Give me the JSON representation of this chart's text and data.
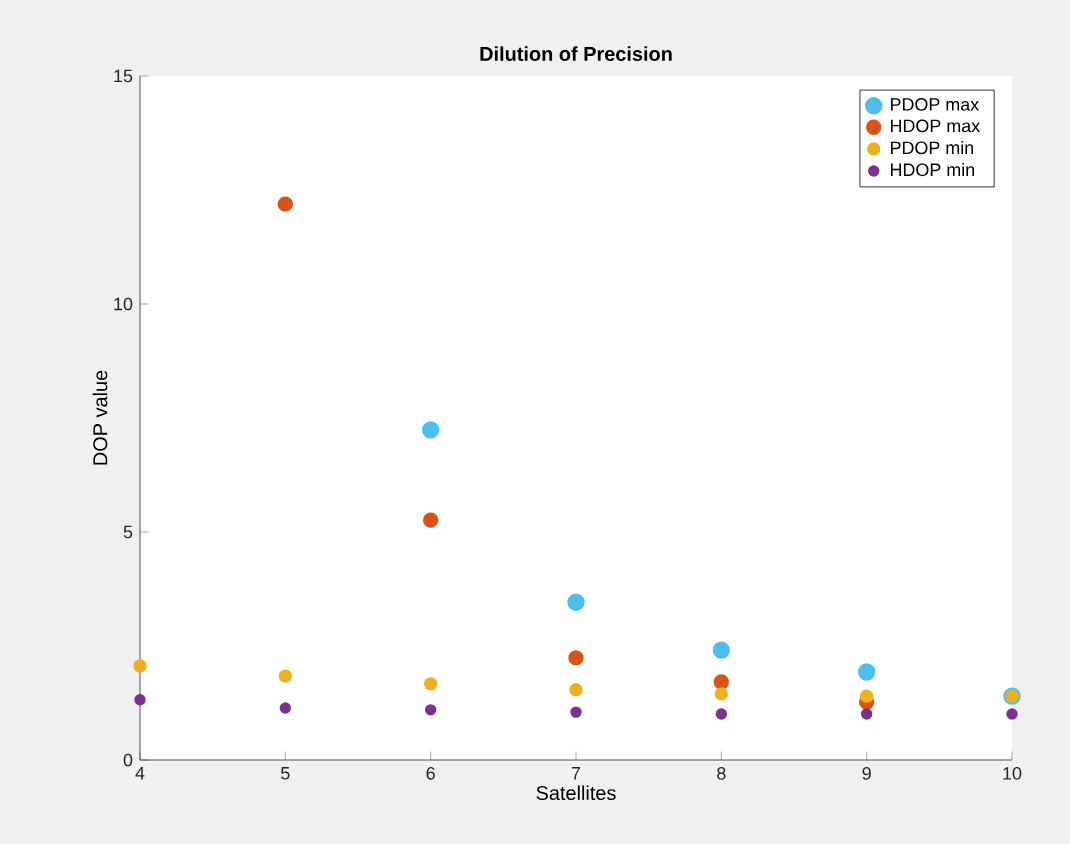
{
  "chart_data": {
    "type": "scatter",
    "title": "Dilution of Precision",
    "xlabel": "Satellites",
    "ylabel": "DOP value",
    "x": [
      4,
      5,
      6,
      7,
      8,
      9,
      10
    ],
    "series": [
      {
        "name": "PDOP max",
        "color": "#4dbeee",
        "values": [
          null,
          null,
          7.24,
          3.46,
          2.41,
          1.93,
          1.4
        ]
      },
      {
        "name": "HDOP max",
        "color": "#d95319",
        "values": [
          null,
          12.19,
          5.26,
          2.24,
          1.71,
          1.27,
          null
        ]
      },
      {
        "name": "PDOP min",
        "color": "#edb120",
        "values": [
          2.06,
          1.84,
          1.67,
          1.54,
          1.45,
          1.4,
          1.4
        ]
      },
      {
        "name": "HDOP min",
        "color": "#7e2f8e",
        "values": [
          1.32,
          1.14,
          1.1,
          1.05,
          1.01,
          1.01,
          1.01
        ]
      }
    ],
    "xlim": [
      4,
      10
    ],
    "ylim": [
      0,
      15
    ],
    "xticks": [
      4,
      5,
      6,
      7,
      8,
      9,
      10
    ],
    "yticks": [
      0,
      5,
      10,
      15
    ],
    "marker": "circle",
    "legend": "top right",
    "grid": false
  }
}
